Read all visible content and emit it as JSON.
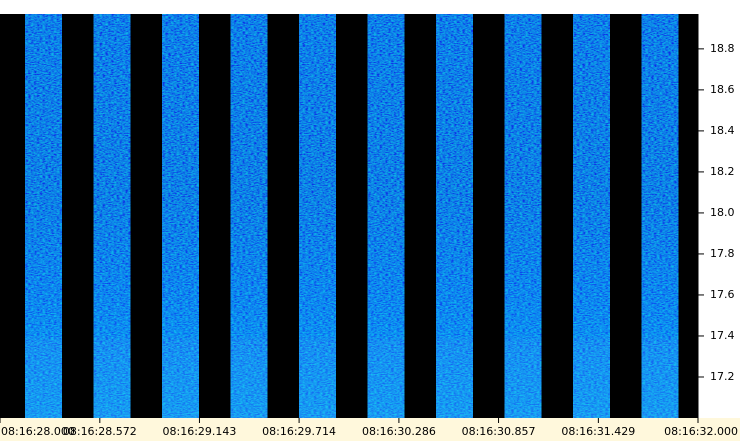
{
  "chart_data": {
    "type": "spectrogram",
    "xlim": [
      28.0,
      32.0
    ],
    "xticks": [
      {
        "value": 28.0,
        "label": "08:16:28.000"
      },
      {
        "value": 28.572,
        "label": "08:16:28.572"
      },
      {
        "value": 29.143,
        "label": "08:16:29.143"
      },
      {
        "value": 29.714,
        "label": "08:16:29.714"
      },
      {
        "value": 30.286,
        "label": "08:16:30.286"
      },
      {
        "value": 30.857,
        "label": "08:16:30.857"
      },
      {
        "value": 31.429,
        "label": "08:16:31.429"
      },
      {
        "value": 32.0,
        "label": "08:16:32.000"
      }
    ],
    "ylim": [
      17.0,
      18.97
    ],
    "yticks": [
      {
        "value": 17.2,
        "label": "17.2"
      },
      {
        "value": 17.4,
        "label": "17.4"
      },
      {
        "value": 17.6,
        "label": "17.6"
      },
      {
        "value": 17.8,
        "label": "17.8"
      },
      {
        "value": 18.0,
        "label": "18.0"
      },
      {
        "value": 18.2,
        "label": "18.2"
      },
      {
        "value": 18.4,
        "label": "18.4"
      },
      {
        "value": 18.6,
        "label": "18.6"
      },
      {
        "value": 18.8,
        "label": "18.8"
      }
    ]
  }
}
